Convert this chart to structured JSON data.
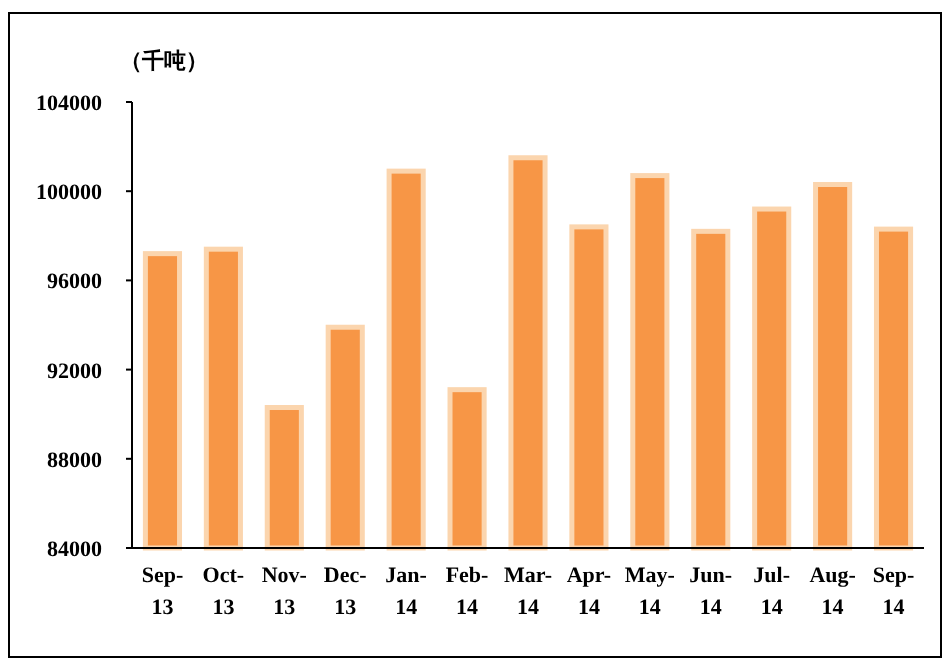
{
  "chart_data": {
    "type": "bar",
    "ylabel": "（千吨）",
    "categories": [
      "Sep-13",
      "Oct-13",
      "Nov-13",
      "Dec-13",
      "Jan-14",
      "Feb-14",
      "Mar-14",
      "Apr-14",
      "May-14",
      "Jun-14",
      "Jul-14",
      "Aug-14",
      "Sep-14"
    ],
    "values": [
      97200,
      97400,
      90300,
      93900,
      100900,
      91100,
      101500,
      98400,
      100700,
      98200,
      99200,
      100300,
      98300
    ],
    "color": "#f79646",
    "ylim": [
      84000,
      104000
    ],
    "yticks": [
      84000,
      88000,
      92000,
      96000,
      100000,
      104000
    ],
    "grid": false
  }
}
